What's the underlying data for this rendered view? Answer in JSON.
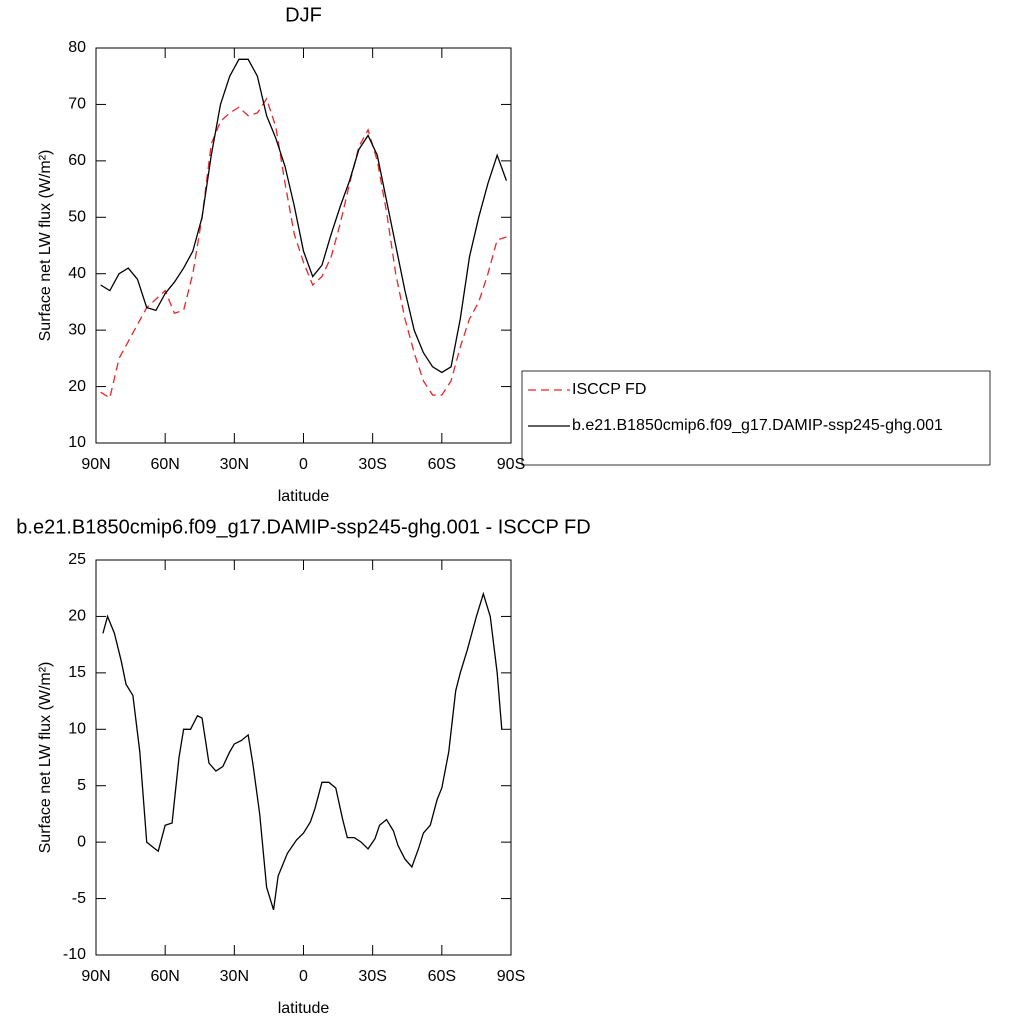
{
  "chart_data": [
    {
      "type": "line",
      "title": "DJF",
      "xlabel": "latitude",
      "ylabel": "Surface net LW flux (W/m²)",
      "x": [
        88,
        84,
        80,
        76,
        72,
        68,
        64,
        60,
        56,
        52,
        48,
        44,
        40,
        36,
        32,
        28,
        24,
        20,
        16,
        12,
        8,
        4,
        0,
        -4,
        -8,
        -12,
        -16,
        -20,
        -24,
        -28,
        -32,
        -36,
        -40,
        -44,
        -48,
        -52,
        -56,
        -60,
        -64,
        -68,
        -72,
        -76,
        -80,
        -84,
        -88
      ],
      "series": [
        {
          "name": "ISCCP FD",
          "color": "#e8262a",
          "dashed": true,
          "values": [
            19,
            18,
            25,
            28,
            31,
            34,
            35.5,
            37,
            33,
            33.5,
            40,
            50,
            63,
            67,
            68.5,
            69.5,
            68,
            68.5,
            71,
            66,
            56,
            47,
            42,
            38,
            39.5,
            43,
            49,
            56,
            62.5,
            65.5,
            60,
            51,
            40,
            32,
            26,
            21,
            18.5,
            18.5,
            21,
            27,
            32,
            35,
            40,
            46,
            46.5
          ]
        },
        {
          "name": "b.e21.B1850cmip6.f09_g17.DAMIP-ssp245-ghg.001",
          "color": "#000000",
          "dashed": false,
          "values": [
            38,
            37,
            40,
            41,
            39,
            34,
            33.5,
            36.5,
            38.5,
            41,
            44,
            50,
            61,
            70,
            75,
            78,
            78,
            75,
            68,
            64,
            59,
            52,
            44,
            39.5,
            41.5,
            47,
            52,
            56.5,
            62,
            64.5,
            61,
            53,
            45,
            37,
            30,
            26,
            23.5,
            22.5,
            23.5,
            32,
            43,
            50,
            56,
            61,
            56.5
          ]
        }
      ],
      "xlim": [
        90,
        -90
      ],
      "xticks": [
        {
          "value": 90,
          "label": "90N"
        },
        {
          "value": 60,
          "label": "60N"
        },
        {
          "value": 30,
          "label": "30N"
        },
        0,
        {
          "value": -30,
          "label": "30S"
        },
        {
          "value": -60,
          "label": "60S"
        },
        {
          "value": -90,
          "label": "90S"
        }
      ],
      "ylim": [
        10,
        80
      ],
      "yticks": [
        10,
        20,
        30,
        40,
        50,
        60,
        70,
        80
      ],
      "legend": "right"
    },
    {
      "type": "line",
      "title": "b.e21.B1850cmip6.f09_g17.DAMIP-ssp245-ghg.001 - ISCCP FD",
      "xlabel": "latitude",
      "ylabel": "Surface net LW flux (W/m²)",
      "x": [
        87,
        85,
        82,
        79,
        77,
        74,
        71,
        68,
        65,
        63,
        60,
        57,
        54,
        52,
        49,
        46,
        44,
        41,
        38,
        35,
        32,
        30,
        27,
        24,
        22,
        19,
        16,
        13,
        11,
        7,
        3,
        0,
        -3,
        -5,
        -8,
        -11,
        -14,
        -17,
        -19,
        -22,
        -25,
        -28,
        -31,
        -33,
        -36,
        -39,
        -41,
        -44,
        -47,
        -50,
        -52,
        -55,
        -58,
        -60,
        -63,
        -66,
        -68,
        -71,
        -75,
        -78,
        -81,
        -84,
        -86
      ],
      "values": [
        18.5,
        20,
        18.5,
        16,
        14,
        13,
        8,
        0,
        -0.5,
        -0.8,
        1.5,
        1.7,
        7.5,
        10,
        10,
        11.2,
        11,
        7,
        6.3,
        6.7,
        8,
        8.7,
        9,
        9.5,
        7,
        2.5,
        -4,
        -6,
        -3,
        -1,
        0.2,
        0.8,
        1.8,
        3,
        5.3,
        5.3,
        4.8,
        2,
        0.4,
        0.4,
        0,
        -0.6,
        0.3,
        1.5,
        2,
        1,
        -0.3,
        -1.5,
        -2.2,
        -0.5,
        0.8,
        1.5,
        3.8,
        4.8,
        8,
        13.4,
        15,
        17,
        20,
        22,
        20,
        15,
        10
      ],
      "color": "#000000",
      "xlim": [
        90,
        -90
      ],
      "xticks": [
        {
          "value": 90,
          "label": "90N"
        },
        {
          "value": 60,
          "label": "60N"
        },
        {
          "value": 30,
          "label": "30N"
        },
        0,
        {
          "value": -30,
          "label": "30S"
        },
        {
          "value": -60,
          "label": "60S"
        },
        {
          "value": -90,
          "label": "90S"
        }
      ],
      "ylim": [
        -10,
        25
      ],
      "yticks": [
        -10,
        -5,
        0,
        5,
        10,
        15,
        20,
        25
      ]
    }
  ]
}
